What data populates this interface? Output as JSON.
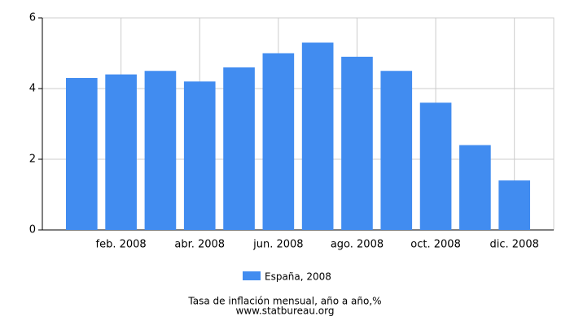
{
  "chart_data": {
    "type": "bar",
    "categories": [
      null,
      "feb. 2008",
      null,
      "abr. 2008",
      null,
      "jun. 2008",
      null,
      "ago. 2008",
      null,
      "oct. 2008",
      null,
      "dic. 2008"
    ],
    "series": [
      {
        "name": "España, 2008",
        "color": "#418cf0",
        "values": [
          4.3,
          4.4,
          4.5,
          4.2,
          4.6,
          5.0,
          5.3,
          4.9,
          4.5,
          3.6,
          2.4,
          1.4
        ]
      }
    ],
    "ylim": [
      0,
      6
    ],
    "yticks": [
      0,
      2,
      4,
      6
    ],
    "grid": true,
    "caption": "Tasa de inflación mensual, año a año,%",
    "source": "www.statbureau.org"
  }
}
